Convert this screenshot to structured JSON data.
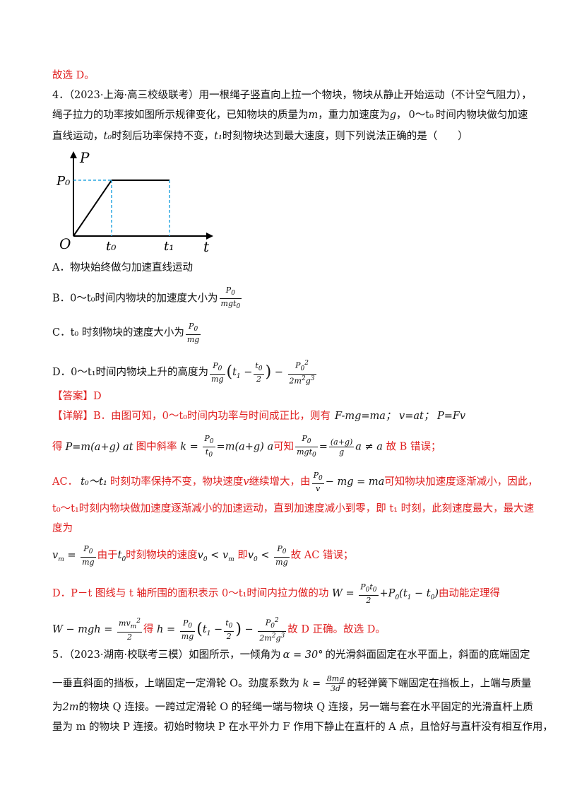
{
  "prev_answer": "故选 D。",
  "q4": {
    "number": "4．",
    "source": "（2023·上海·高三校级联考）",
    "stem_1": "用一根绳子竖直向上拉一个物块，物块从静止开始运动（不计空气阻力），",
    "stem_2a": "绳子拉力的功率按如图所示规律变化，已知物块的质量为",
    "stem_2b": "，重力加速度为",
    "stem_2c": "时间内物块做匀加速",
    "stem_3a": "直线运动，",
    "stem_3b": "时刻后功率保持不变，",
    "stem_3c": "时刻物块达到最大速度，则下列说法正确的是（　　）",
    "var_m": "m",
    "var_g": "g",
    "range_0_t0": "0～t₀",
    "t0": "t₀",
    "t1": "t₁"
  },
  "graph": {
    "y_axis_label": "P",
    "x_axis_label": "t",
    "origin_label": "O",
    "p0_label": "P₀",
    "t0_label": "t₀",
    "t1_label": "t₁"
  },
  "options": {
    "A": "A．物块始终做匀加速直线运动",
    "B_label": "B．",
    "B_text": "0～t₀时间内物块的加速度大小为",
    "C_label": "C．",
    "C_text": "t₀ 时刻物块的速度大小为",
    "D_label": "D．",
    "D_text": "0～t₁时间内物块上升的高度为"
  },
  "answer": {
    "label": "【答案】",
    "value": "D"
  },
  "explain": {
    "label": "【详解】",
    "b1": "B．由图可知，0～t₀时间内功率与时间成正比，则有",
    "b1_eq": "F-mg=ma；  v=at；  P=Fv",
    "b2a": "得",
    "b2_eq": "P=m(a+g) at",
    "b2b": "图中斜率",
    "b2c": "可知",
    "b2d": "故 B 错误；",
    "ac1a": "AC．",
    "ac1_range": "t₀～t₁",
    "ac1b": "时刻功率保持不变，物块速度",
    "ac1_v": "v",
    "ac1c": "继续增大，由",
    "ac1d": "可知物块加速度逐渐减小，因此，",
    "ac2": "t₀～t₁时刻内物块做加速度逐渐减小的加速运动，直到加速度减小到零，即 t₁ 时刻，此刻速度最大，最大速",
    "ac3": "度为",
    "ac4a": "由于",
    "ac4b": "时刻物块的速度",
    "ac4c": "即",
    "ac4d": "故 AC 错误；",
    "d1a": "D．P－t 图线与 t 轴所围的面积表示 0～t₁时间内拉力做的功",
    "d1b": "由动能定理得",
    "d2a": "得",
    "d2b": "故 D 正确。故选 D。"
  },
  "q5": {
    "l1a": "5．（2023·湖南·校联考三模）如图所示，一倾角为",
    "l1_eq": "α = 30°",
    "l1b": "的光滑斜面固定在水平面上，斜面的底端固定",
    "l2a": "一垂直斜面的挡板，上端固定一定滑轮 O。劲度系数为",
    "l2b": "的轻弹簧下端固定在挡板上，上端与质量",
    "l3a": "为",
    "l3_eq": "2m",
    "l3b": "的物块 Q 连接。一跨过定滑轮 O 的轻绳一端与物块 Q 连接，另一端与套在水平固定的光滑直杆上质",
    "l4": "量为 m 的物块 P 连接。初始时物块 P 在水平外力 F 作用下静止在直杆的 A 点，且恰好与直杆没有相互作用，"
  }
}
